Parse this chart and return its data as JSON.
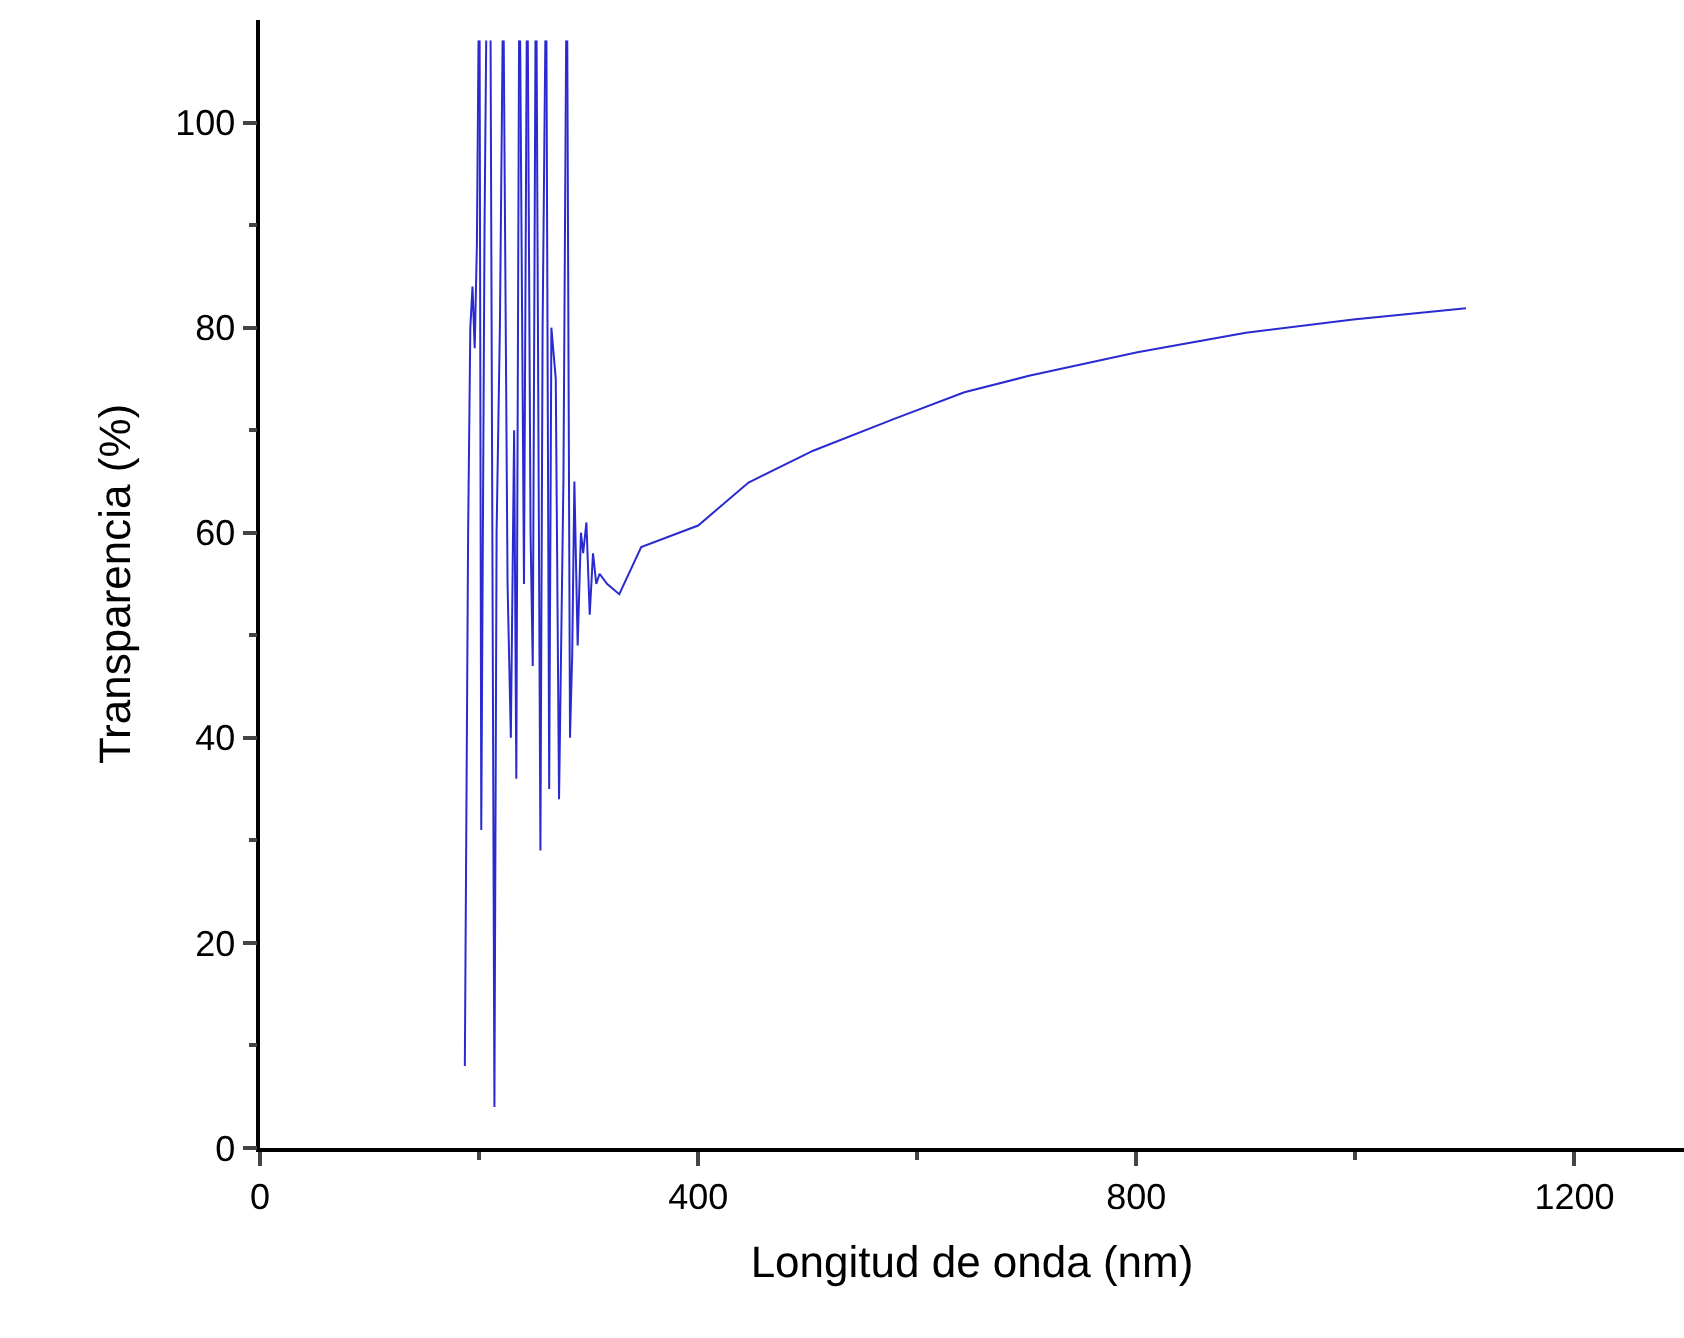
{
  "chart_data": {
    "type": "line",
    "xlabel": "Longitud de onda (nm)",
    "ylabel": "Transparencia (%)",
    "xlim": [
      0,
      1300
    ],
    "ylim": [
      0,
      110
    ],
    "xticks": [
      0,
      {
        "value": 200,
        "label": null
      },
      400,
      {
        "value": 600,
        "label": null
      },
      800,
      {
        "value": 1000,
        "label": null
      },
      1200
    ],
    "yticks": [
      0,
      {
        "value": 10,
        "label": null
      },
      20,
      {
        "value": 30,
        "label": null
      },
      40,
      {
        "value": 50,
        "label": null
      },
      60,
      {
        "value": 70,
        "label": null
      },
      80,
      {
        "value": 90,
        "label": null
      },
      100
    ],
    "marker": "none",
    "line_style": "solid",
    "series": [
      {
        "color": "#2a2ad0",
        "x": [
          187,
          190,
          192,
          194,
          196,
          198,
          199.5,
          200,
          200.5,
          202,
          205,
          206.5,
          208.5,
          210.5,
          214,
          216,
          219,
          221.5,
          222,
          222.5,
          226,
          229,
          232,
          234,
          236.5,
          237,
          237.5,
          241,
          243.5,
          244,
          244.5,
          247,
          249,
          251.5,
          252,
          252.5,
          256,
          258,
          260.5,
          261,
          261.5,
          264,
          266,
          270,
          273,
          277,
          279.5,
          280,
          280.5,
          283,
          285,
          287,
          290,
          293,
          295,
          298,
          301,
          304,
          307,
          310,
          317,
          328,
          348,
          400,
          446,
          505,
          579,
          643,
          702,
          801,
          900,
          998,
          1101
        ],
        "values": [
          8,
          60,
          80,
          84,
          78,
          88,
          108,
          null,
          108,
          31,
          90,
          108,
          null,
          108,
          4,
          60,
          80,
          108,
          null,
          108,
          55,
          40,
          70,
          36,
          108,
          null,
          108,
          55,
          108,
          null,
          108,
          60,
          47,
          108,
          null,
          108,
          29,
          80,
          108,
          null,
          108,
          35,
          80,
          75,
          34,
          65,
          108,
          null,
          108,
          40,
          48,
          65,
          49,
          60,
          58,
          61,
          52,
          58,
          55,
          56,
          55,
          54,
          58.6,
          60.7,
          64.9,
          68,
          71.1,
          73.7,
          75.3,
          77.6,
          79.5,
          80.8,
          81.9
        ]
      }
    ]
  }
}
